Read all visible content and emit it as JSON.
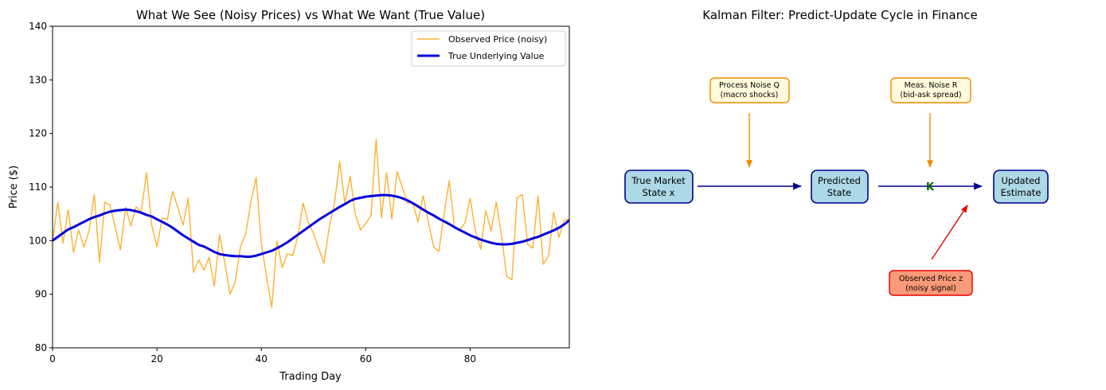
{
  "colors": {
    "observed": "#FBB130",
    "true_value": "#0000DD",
    "box_fill": "#ADD8E6",
    "box_edge": "#00008B",
    "noise_fill": "#FFFBDC",
    "noise_edge": "#F08C00",
    "obs_fill": "#FA9A78",
    "obs_edge": "#E60000",
    "gain_text": "#006400",
    "arrow_main": "#00008B",
    "arrow_noise": "#F08C00",
    "arrow_obs": "#E60000"
  },
  "chart_data": [
    {
      "type": "line",
      "title": "What We See (Noisy Prices) vs What We Want (True Value)",
      "xlabel": "Trading Day",
      "ylabel": "Price ($)",
      "xlim": [
        0,
        99
      ],
      "ylim": [
        80,
        140
      ],
      "xticks": [
        0,
        20,
        40,
        60,
        80
      ],
      "yticks": [
        80,
        90,
        100,
        110,
        120,
        130,
        140
      ],
      "grid": false,
      "legend_position": "top-right",
      "series": [
        {
          "name": "Observed Price (noisy)",
          "color_key": "observed",
          "y": [
            100.0,
            107.2,
            99.5,
            105.8,
            97.8,
            102.0,
            98.8,
            101.8,
            108.6,
            96.0,
            107.2,
            106.6,
            102.5,
            98.3,
            106.2,
            102.7,
            106.3,
            105.4,
            112.7,
            102.9,
            98.8,
            104.2,
            104.0,
            109.2,
            106.2,
            102.9,
            108.0,
            94.1,
            96.4,
            94.5,
            96.9,
            91.5,
            101.1,
            95.9,
            90.0,
            92.3,
            98.9,
            101.3,
            107.2,
            111.8,
            99.5,
            93.2,
            87.5,
            99.9,
            95.0,
            97.6,
            97.2,
            100.9,
            107.0,
            103.4,
            101.3,
            98.5,
            95.8,
            102.4,
            106.9,
            114.8,
            107.0,
            112.0,
            104.9,
            102.0,
            103.2,
            104.6,
            118.9,
            104.3,
            112.7,
            104.0,
            112.9,
            110.0,
            107.0,
            107.1,
            103.5,
            108.4,
            103.4,
            98.8,
            98.0,
            104.9,
            111.2,
            102.6,
            102.0,
            103.3,
            107.9,
            101.9,
            98.4,
            105.6,
            101.8,
            107.2,
            101.0,
            93.3,
            92.7,
            108.0,
            108.6,
            99.4,
            98.6,
            108.3,
            95.6,
            97.1,
            105.3,
            100.6,
            103.8,
            104.0
          ]
        },
        {
          "name": "True Underlying Value",
          "color_key": "true_value",
          "y": [
            100.0,
            100.7,
            101.4,
            102.1,
            102.5,
            103.0,
            103.5,
            104.0,
            104.4,
            104.7,
            105.1,
            105.4,
            105.6,
            105.7,
            105.8,
            105.7,
            105.5,
            105.2,
            104.8,
            104.5,
            104.0,
            103.5,
            103.0,
            102.4,
            101.7,
            101.0,
            100.4,
            99.8,
            99.2,
            98.9,
            98.4,
            97.9,
            97.5,
            97.3,
            97.2,
            97.1,
            97.1,
            97.0,
            97.0,
            97.2,
            97.5,
            97.8,
            98.1,
            98.6,
            99.1,
            99.7,
            100.4,
            101.1,
            101.8,
            102.5,
            103.2,
            103.9,
            104.5,
            105.1,
            105.7,
            106.3,
            106.8,
            107.4,
            107.8,
            108.0,
            108.2,
            108.3,
            108.4,
            108.5,
            108.5,
            108.4,
            108.2,
            107.9,
            107.5,
            107.0,
            106.4,
            105.8,
            105.2,
            104.7,
            104.1,
            103.6,
            103.1,
            102.5,
            102.0,
            101.5,
            101.0,
            100.6,
            100.2,
            99.9,
            99.6,
            99.4,
            99.3,
            99.3,
            99.4,
            99.6,
            99.8,
            100.1,
            100.4,
            100.7,
            101.1,
            101.5,
            101.9,
            102.4,
            103.0,
            103.8
          ]
        }
      ]
    },
    {
      "type": "diagram",
      "title": "Kalman Filter: Predict-Update Cycle in Finance",
      "nodes": [
        {
          "id": "true_state",
          "lines": [
            "True Market",
            "State x"
          ],
          "style": "state"
        },
        {
          "id": "predicted",
          "lines": [
            "Predicted",
            "State"
          ],
          "style": "state"
        },
        {
          "id": "updated",
          "lines": [
            "Updated",
            "Estimate"
          ],
          "style": "state"
        },
        {
          "id": "process_noise",
          "lines": [
            "Process Noise Q",
            "(macro shocks)"
          ],
          "style": "noise"
        },
        {
          "id": "meas_noise",
          "lines": [
            "Meas. Noise R",
            "(bid-ask spread)"
          ],
          "style": "noise"
        },
        {
          "id": "observed",
          "lines": [
            "Observed Price z",
            "(noisy signal)"
          ],
          "style": "obs"
        }
      ],
      "gain_label": "K",
      "edges": [
        {
          "from": "true_state",
          "to": "predicted"
        },
        {
          "from": "predicted",
          "to": "updated"
        },
        {
          "from": "process_noise",
          "to": "true_state->predicted"
        },
        {
          "from": "meas_noise",
          "to": "predicted->updated"
        },
        {
          "from": "observed",
          "to": "updated"
        }
      ]
    }
  ]
}
